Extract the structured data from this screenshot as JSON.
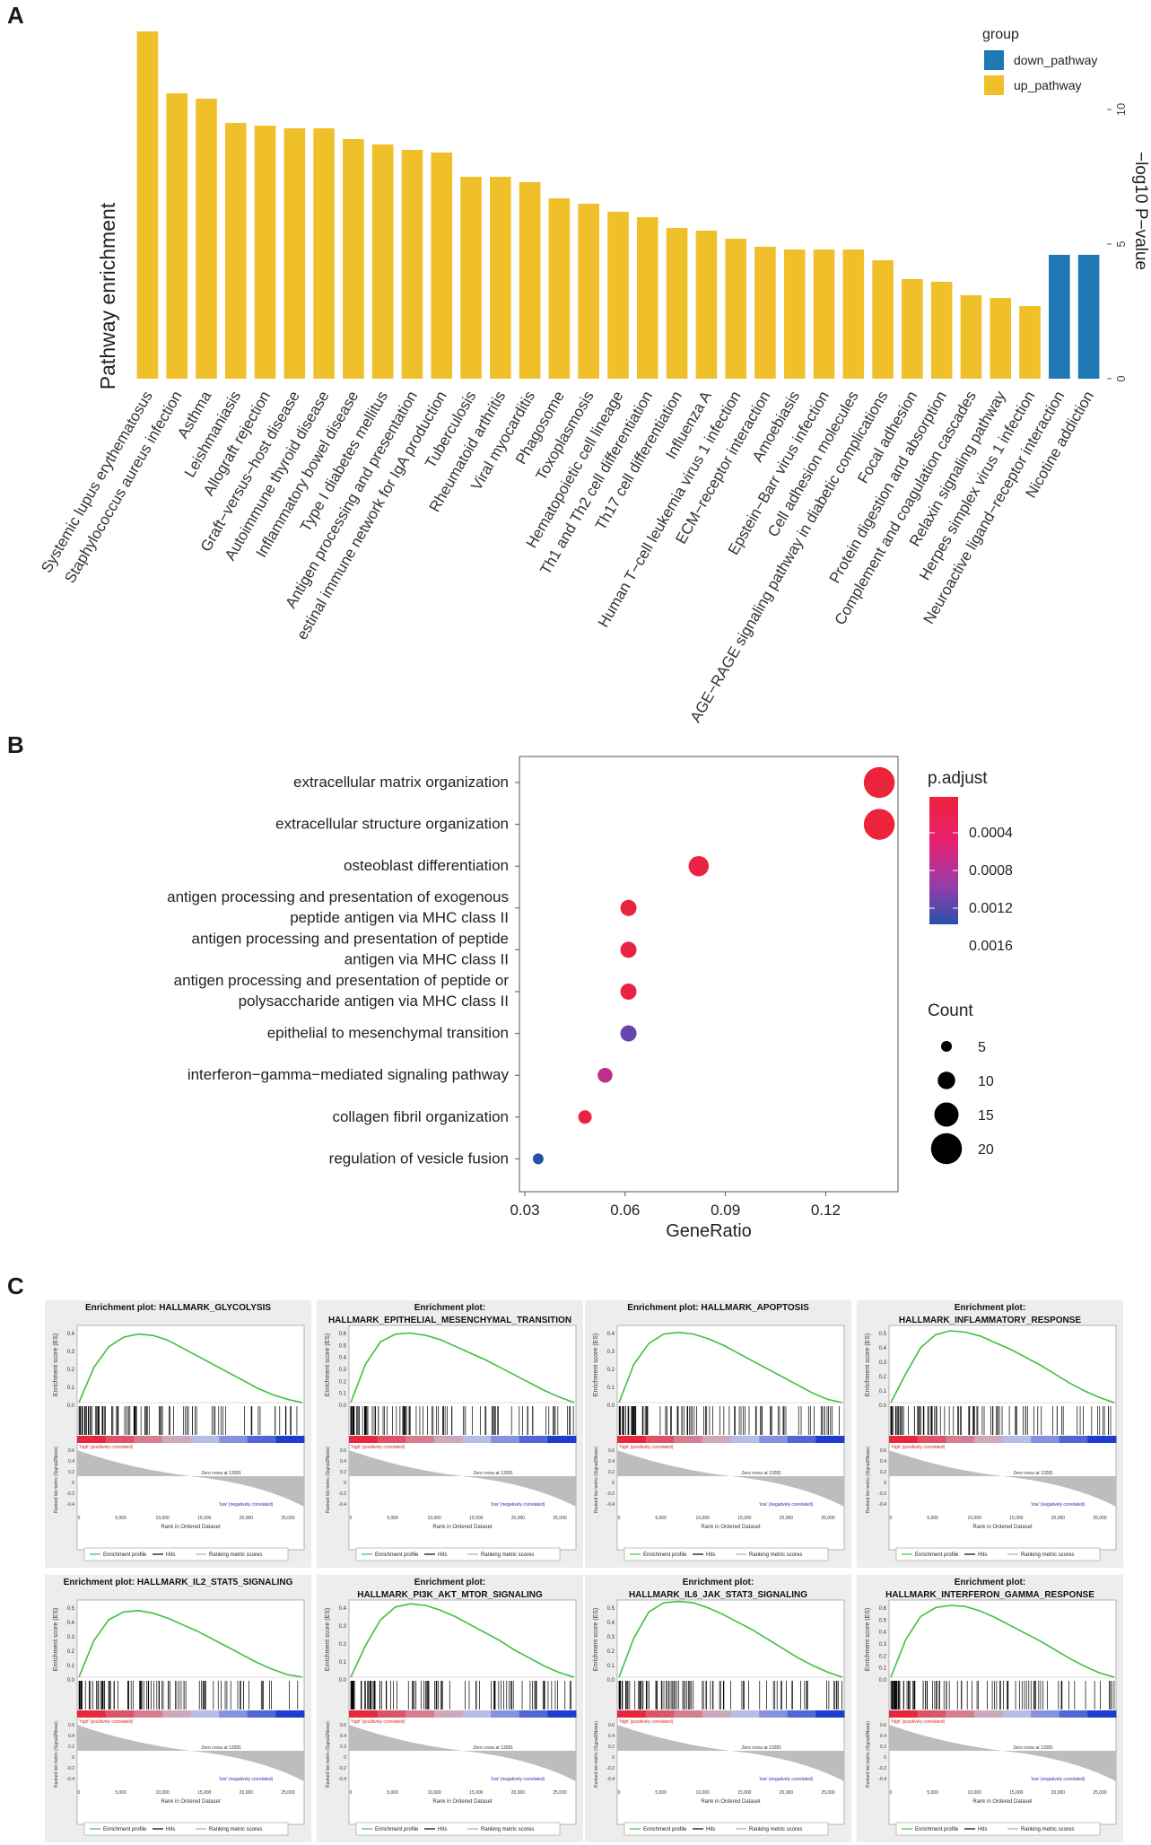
{
  "panels": {
    "a": "A",
    "b": "B",
    "c": "C"
  },
  "chart_data": [
    {
      "type": "bar",
      "panel": "A",
      "ylabel": "Pathway enrichment",
      "right_axis_label": "−log10 P−value",
      "ylim": [
        0,
        13
      ],
      "y_ticks": [
        0,
        5,
        10
      ],
      "legend": {
        "title": "group",
        "position": "top-right",
        "entries": [
          {
            "name": "down_pathway",
            "color": "#1f78b4"
          },
          {
            "name": "up_pathway",
            "color": "#f0c02a"
          }
        ]
      },
      "categories": [
        "Systemic lupus erythematosus",
        "Staphylococcus aureus infection",
        "Asthma",
        "Leishmaniasis",
        "Allograft rejection",
        "Graft−versus−host disease",
        "Autoimmune thyroid disease",
        "Inflammatory bowel disease",
        "Type I diabetes mellitus",
        "Antigen processing and presentation",
        "estinal immune network for IgA production",
        "Tuberculosis",
        "Rheumatoid arthritis",
        "Viral myocarditis",
        "Phagosome",
        "Toxoplasmosis",
        "Hematopoietic cell lineage",
        "Th1 and Th2 cell differentiation",
        "Th17 cell differentiation",
        "Influenza A",
        "Human T−cell leukemia virus 1 infection",
        "ECM−receptor interaction",
        "Amoebiasis",
        "Epstein−Barr virus infection",
        "Cell adhesion molecules",
        "AGE−RAGE signaling pathway in diabetic complications",
        "Focal adhesion",
        "Protein digestion and absorption",
        "Complement and coagulation cascades",
        "Relaxin signaling pathway",
        "Herpes simplex virus 1 infection",
        "Neuroactive ligand−receptor interaction",
        "Nicotine addiction"
      ],
      "values": [
        12.9,
        10.6,
        10.4,
        9.5,
        9.4,
        9.3,
        9.3,
        8.9,
        8.7,
        8.5,
        8.4,
        7.5,
        7.5,
        7.3,
        6.7,
        6.5,
        6.2,
        6.0,
        5.6,
        5.5,
        5.2,
        4.9,
        4.8,
        4.8,
        4.8,
        4.4,
        3.7,
        3.6,
        3.1,
        3.0,
        2.7,
        4.6,
        4.6
      ],
      "groups": [
        "up",
        "up",
        "up",
        "up",
        "up",
        "up",
        "up",
        "up",
        "up",
        "up",
        "up",
        "up",
        "up",
        "up",
        "up",
        "up",
        "up",
        "up",
        "up",
        "up",
        "up",
        "up",
        "up",
        "up",
        "up",
        "up",
        "up",
        "up",
        "up",
        "up",
        "up",
        "down",
        "down"
      ]
    },
    {
      "type": "scatter",
      "panel": "B",
      "xlabel": "GeneRatio",
      "x_ticks": [
        "0.03",
        "0.06",
        "0.09",
        "0.12"
      ],
      "xlim": [
        0.03,
        0.14
      ],
      "color_legend": {
        "title": "p.adjust",
        "ticks": [
          "0.0004",
          "0.0008",
          "0.0012",
          "0.0016"
        ],
        "range": [
          0.0001,
          0.0018
        ]
      },
      "size_legend": {
        "title": "Count",
        "ticks": [
          "5",
          "10",
          "15",
          "20"
        ]
      },
      "terms": [
        [
          "extracellular matrix organization"
        ],
        [
          "extracellular structure organization"
        ],
        [
          "osteoblast differentiation"
        ],
        [
          "antigen processing and presentation of exogenous",
          "peptide antigen via MHC class II"
        ],
        [
          "antigen processing and presentation of peptide",
          "antigen via MHC class II"
        ],
        [
          "antigen processing and presentation of peptide or",
          "polysaccharide antigen via MHC class II"
        ],
        [
          "epithelial to mesenchymal transition"
        ],
        [
          "interferon−gamma−mediated signaling pathway"
        ],
        [
          "collagen fibril organization"
        ],
        [
          "regulation of vesicle fusion"
        ]
      ],
      "gene_ratio": [
        0.136,
        0.136,
        0.082,
        0.061,
        0.061,
        0.061,
        0.061,
        0.054,
        0.048,
        0.034
      ],
      "count": [
        20,
        20,
        12,
        9,
        9,
        9,
        9,
        8,
        7,
        5
      ],
      "p_adjust": [
        0.0001,
        0.0001,
        0.0002,
        0.0002,
        0.0002,
        0.0002,
        0.0015,
        0.001,
        0.0002,
        0.0018
      ]
    },
    {
      "type": "line",
      "panel": "C",
      "subplot_ylabel": "Enrichment score (ES)",
      "lower_ylabel": "Ranked list metric (Signal2Noise)",
      "xlabel": "Rank in Ordered Dataset",
      "x_ticks": [
        "0",
        "5,000",
        "10,000",
        "15,000",
        "20,000",
        "25,000"
      ],
      "pos_label": "'high' (positively correlated)",
      "neg_label": "'low' (negatively correlated)",
      "zero_cross_label": "Zero cross at 13281",
      "legend_entries": [
        "Enrichment profile",
        "Hits",
        "Ranking metric scores"
      ],
      "plots": [
        {
          "title": [
            "Enrichment plot: HALLMARK_GLYCOLYSIS"
          ],
          "peak": 0.43,
          "ymax": 0.4,
          "yticks": [
            "0.4",
            "0.3",
            "0.2",
            "0.1",
            "0.0"
          ],
          "es": [
            0,
            0.22,
            0.35,
            0.41,
            0.43,
            0.42,
            0.39,
            0.34,
            0.29,
            0.24,
            0.19,
            0.14,
            0.09,
            0.05,
            0.02,
            0.0
          ]
        },
        {
          "title": [
            "Enrichment plot:",
            "HALLMARK_EPITHELIAL_MESENCHYMAL_TRANSITION"
          ],
          "peak": 0.63,
          "ymax": 0.6,
          "yticks": [
            "0.6",
            "0.5",
            "0.4",
            "0.3",
            "0.2",
            "0.1",
            "0.0"
          ],
          "es": [
            0,
            0.35,
            0.55,
            0.62,
            0.63,
            0.61,
            0.57,
            0.51,
            0.45,
            0.39,
            0.32,
            0.25,
            0.18,
            0.11,
            0.05,
            0.0
          ]
        },
        {
          "title": [
            "Enrichment plot: HALLMARK_APOPTOSIS"
          ],
          "peak": 0.44,
          "ymax": 0.4,
          "yticks": [
            "0.4",
            "0.3",
            "0.2",
            "0.1",
            "0.0"
          ],
          "es": [
            0,
            0.24,
            0.37,
            0.43,
            0.44,
            0.43,
            0.4,
            0.36,
            0.31,
            0.26,
            0.21,
            0.16,
            0.11,
            0.06,
            0.02,
            0.0
          ]
        },
        {
          "title": [
            "Enrichment plot:",
            "HALLMARK_INFLAMMATORY_RESPONSE"
          ],
          "peak": 0.55,
          "ymax": 0.5,
          "yticks": [
            "0.5",
            "0.4",
            "0.3",
            "0.2",
            "0.1",
            "0.0"
          ],
          "es": [
            0,
            0.22,
            0.42,
            0.52,
            0.55,
            0.54,
            0.51,
            0.46,
            0.41,
            0.35,
            0.29,
            0.22,
            0.15,
            0.09,
            0.04,
            0.0
          ]
        },
        {
          "title": [
            "Enrichment plot: HALLMARK_IL2_STAT5_SIGNALING"
          ],
          "peak": 0.51,
          "ymax": 0.5,
          "yticks": [
            "0.5",
            "0.4",
            "0.3",
            "0.2",
            "0.1",
            "0.0"
          ],
          "es": [
            0,
            0.28,
            0.44,
            0.5,
            0.51,
            0.49,
            0.45,
            0.4,
            0.35,
            0.29,
            0.23,
            0.17,
            0.11,
            0.06,
            0.02,
            0.0
          ]
        },
        {
          "title": [
            "Enrichment plot:",
            "HALLMARK_PI3K_AKT_MTOR_SIGNALING"
          ],
          "peak": 0.46,
          "ymax": 0.4,
          "yticks": [
            "0.4",
            "0.3",
            "0.2",
            "0.1",
            "0.0"
          ],
          "es": [
            0,
            0.2,
            0.36,
            0.44,
            0.46,
            0.45,
            0.42,
            0.38,
            0.33,
            0.28,
            0.23,
            0.17,
            0.12,
            0.07,
            0.03,
            0.0
          ]
        },
        {
          "title": [
            "Enrichment plot:",
            "HALLMARK_IL6_JAK_STAT3_SIGNALING"
          ],
          "peak": 0.58,
          "ymax": 0.5,
          "yticks": [
            "0.5",
            "0.4",
            "0.3",
            "0.2",
            "0.1",
            "0.0"
          ],
          "es": [
            0,
            0.3,
            0.5,
            0.57,
            0.58,
            0.57,
            0.53,
            0.48,
            0.42,
            0.36,
            0.29,
            0.22,
            0.15,
            0.09,
            0.04,
            0.0
          ]
        },
        {
          "title": [
            "Enrichment plot:",
            "HALLMARK_INTERFERON_GAMMA_RESPONSE"
          ],
          "peak": 0.65,
          "ymax": 0.6,
          "yticks": [
            "0.6",
            "0.5",
            "0.4",
            "0.3",
            "0.2",
            "0.1",
            "0.0"
          ],
          "es": [
            0,
            0.34,
            0.55,
            0.63,
            0.65,
            0.64,
            0.6,
            0.54,
            0.47,
            0.4,
            0.33,
            0.25,
            0.17,
            0.1,
            0.04,
            0.0
          ]
        }
      ]
    }
  ]
}
